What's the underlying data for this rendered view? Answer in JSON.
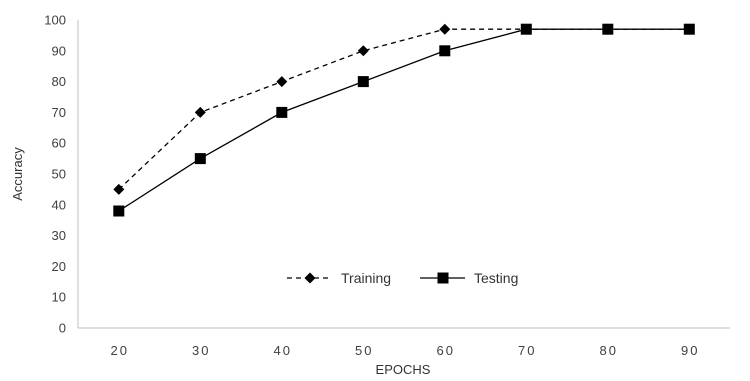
{
  "chart_data": {
    "type": "line",
    "title": "",
    "xlabel": "EPOCHS",
    "ylabel": "Accuracy",
    "categories": [
      "20",
      "30",
      "40",
      "50",
      "60",
      "70",
      "80",
      "90"
    ],
    "ylim": [
      0,
      100
    ],
    "yticks": [
      "0",
      "10",
      "20",
      "30",
      "40",
      "50",
      "60",
      "70",
      "80",
      "90",
      "100"
    ],
    "grid": false,
    "legend_position": "center",
    "series": [
      {
        "name": "Training",
        "values": [
          45,
          70,
          80,
          90,
          97,
          97,
          97,
          97
        ],
        "line_style": "dashed",
        "marker": "diamond",
        "color": "#000000"
      },
      {
        "name": "Testing",
        "values": [
          38,
          55,
          70,
          80,
          90,
          97,
          97,
          97
        ],
        "line_style": "solid",
        "marker": "square",
        "color": "#000000"
      }
    ]
  }
}
